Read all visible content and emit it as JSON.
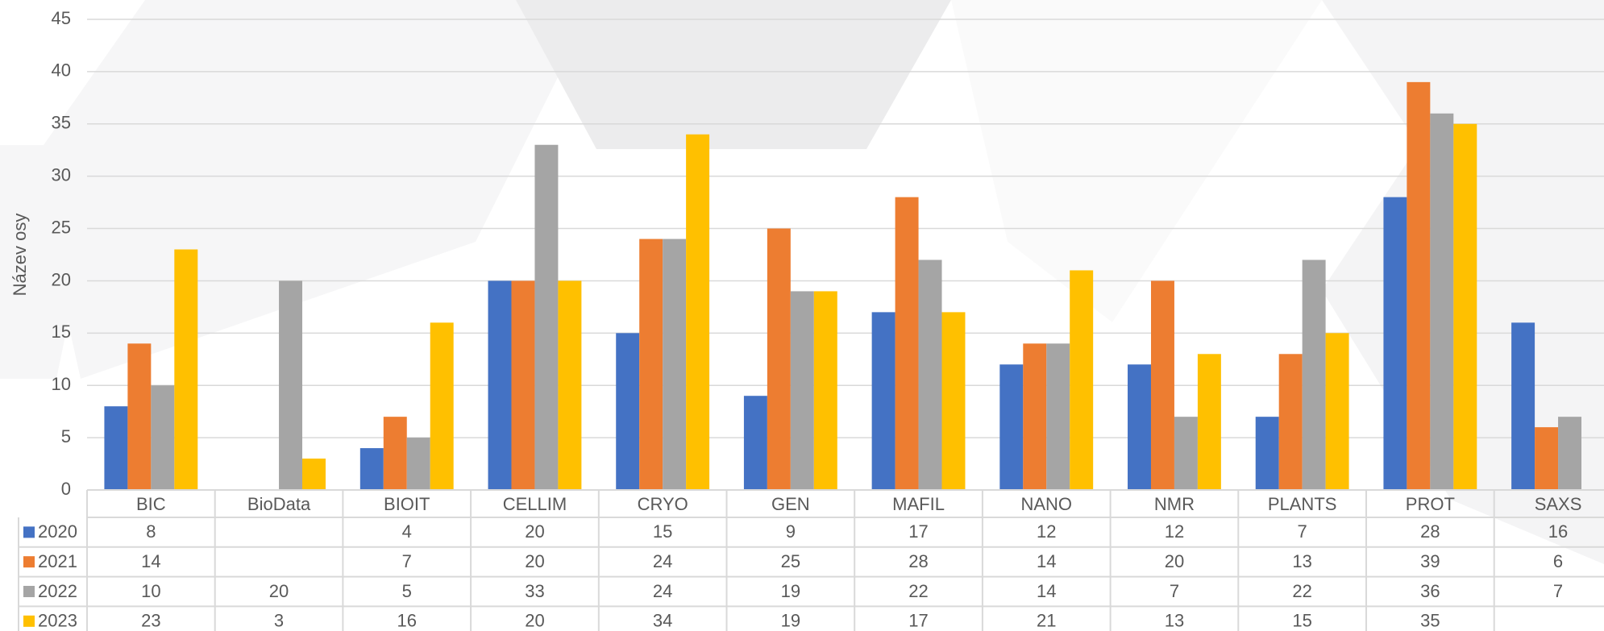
{
  "chart_data": {
    "type": "bar",
    "y_axis_label": "Název osy",
    "categories": [
      "BIC",
      "BioData",
      "BIOIT",
      "CELLIM",
      "CRYO",
      "GEN",
      "MAFIL",
      "NANO",
      "NMR",
      "PLANTS",
      "PROT",
      "SAXS"
    ],
    "series": [
      {
        "name": "2020",
        "color": "#4472c4",
        "values": [
          8,
          null,
          4,
          20,
          15,
          9,
          17,
          12,
          12,
          7,
          28,
          16
        ]
      },
      {
        "name": "2021",
        "color": "#ed7d31",
        "values": [
          14,
          null,
          7,
          20,
          24,
          25,
          28,
          14,
          20,
          13,
          39,
          6
        ]
      },
      {
        "name": "2022",
        "color": "#a5a5a5",
        "values": [
          10,
          20,
          5,
          33,
          24,
          19,
          22,
          14,
          7,
          22,
          36,
          7
        ]
      },
      {
        "name": "2023",
        "color": "#ffc000",
        "values": [
          23,
          3,
          16,
          20,
          34,
          19,
          17,
          21,
          13,
          15,
          35,
          null
        ]
      }
    ],
    "ylim": [
      0,
      45
    ],
    "yticks": [
      0,
      5,
      10,
      15,
      20,
      25,
      30,
      35,
      40,
      45
    ],
    "grid": true,
    "data_table": true
  }
}
